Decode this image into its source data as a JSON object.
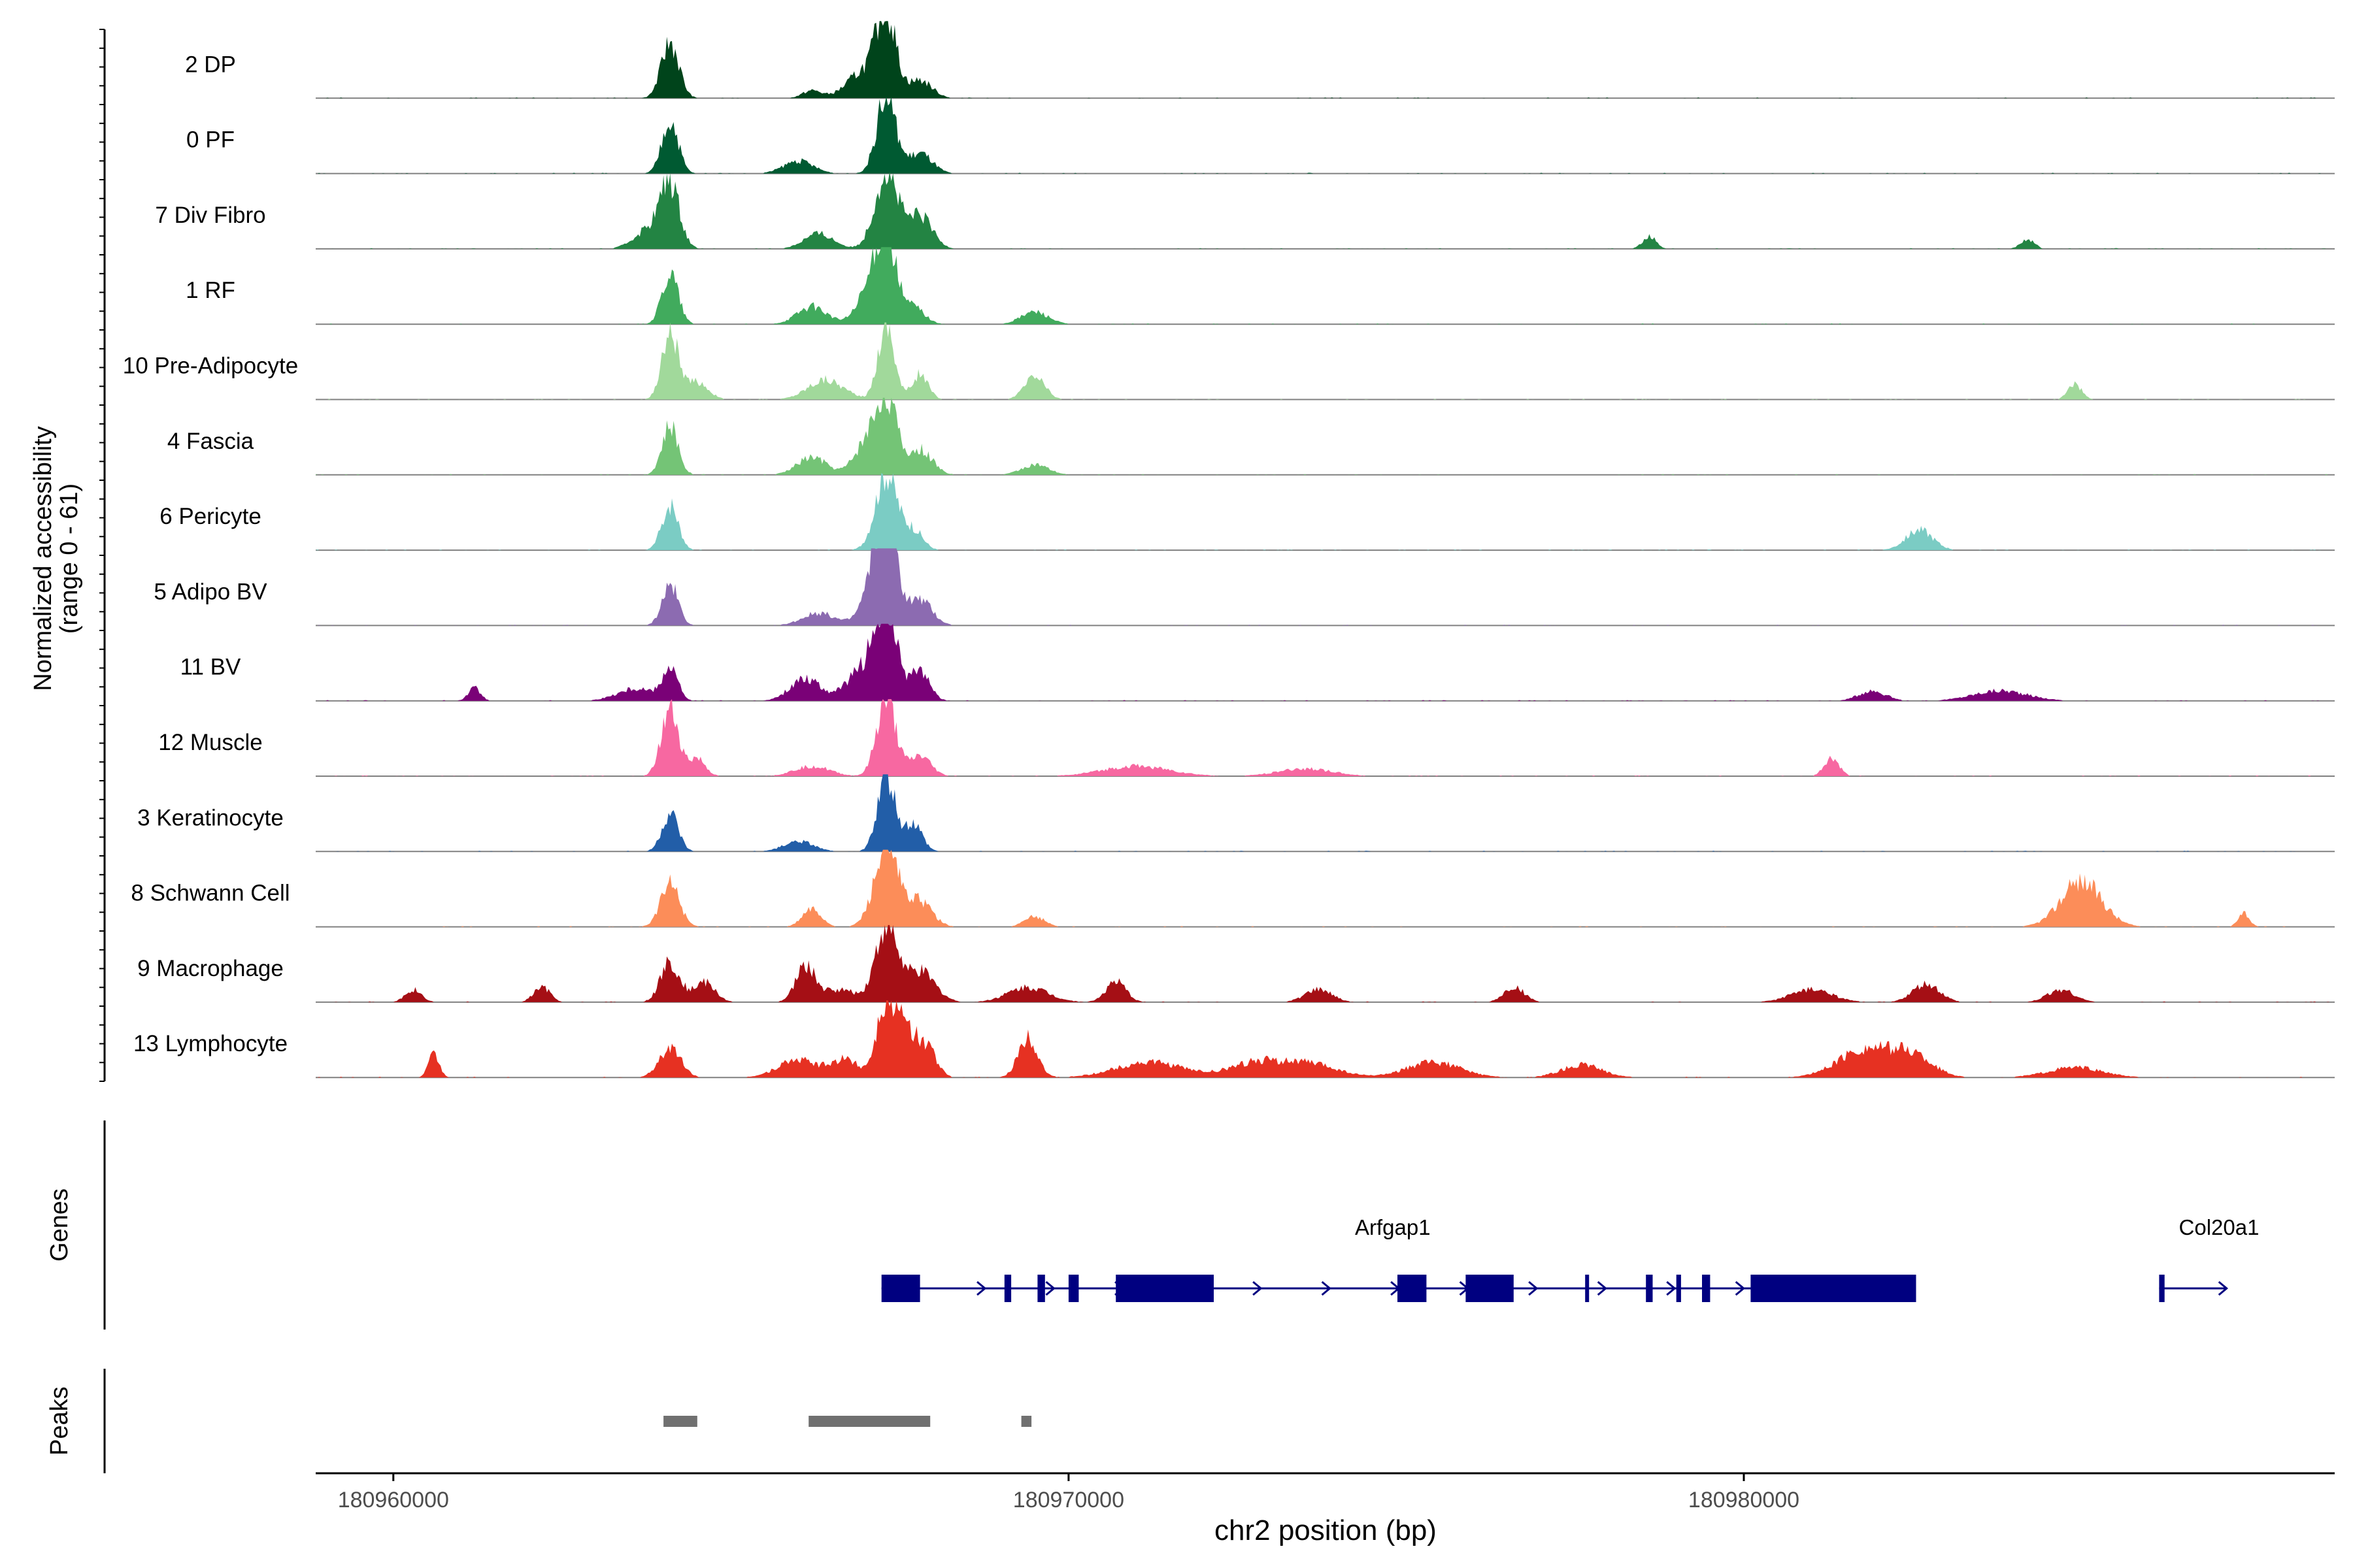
{
  "chart_data": {
    "type": "area",
    "title": "",
    "ylabel_line1": "Normalized accessibility",
    "ylabel_line2": "(range 0 - 61)",
    "xlabel": "chr2 position (bp)",
    "chromosome": "chr2",
    "ylim": [
      0,
      61
    ],
    "xlim": [
      180958850,
      180988750
    ],
    "x_ticks": [
      180960000,
      180970000,
      180980000
    ],
    "x_tick_labels": [
      "180960000",
      "180970000",
      "180980000"
    ],
    "genes_label": "Genes",
    "peaks_label": "Peaks",
    "tracks": [
      {
        "name": "2 DP",
        "color": "#00441b",
        "peaks": [
          [
            180964100,
            44,
            130
          ],
          [
            180966200,
            6,
            140
          ],
          [
            180967000,
            22,
            260
          ],
          [
            180967300,
            61,
            140
          ],
          [
            180967800,
            14,
            180
          ]
        ]
      },
      {
        "name": "0 PF",
        "color": "#005a32",
        "peaks": [
          [
            180964100,
            42,
            120
          ],
          [
            180966000,
            10,
            220
          ],
          [
            180967300,
            61,
            140
          ],
          [
            180967800,
            16,
            180
          ]
        ]
      },
      {
        "name": "7 Div Fibro",
        "color": "#238443",
        "peaks": [
          [
            180963800,
            16,
            220
          ],
          [
            180964100,
            48,
            140
          ],
          [
            180966300,
            12,
            220
          ],
          [
            180967300,
            61,
            170
          ],
          [
            180967800,
            26,
            180
          ],
          [
            180978600,
            10,
            100
          ],
          [
            180984200,
            8,
            100
          ]
        ]
      },
      {
        "name": "1 RF",
        "color": "#41ab5d",
        "peaks": [
          [
            180964100,
            40,
            120
          ],
          [
            180966200,
            14,
            220
          ],
          [
            180967100,
            30,
            200
          ],
          [
            180967300,
            61,
            140
          ],
          [
            180967700,
            14,
            160
          ],
          [
            180969500,
            10,
            200
          ]
        ]
      },
      {
        "name": "10 Pre-Adipocyte",
        "color": "#a1d99b",
        "peaks": [
          [
            180964100,
            52,
            120
          ],
          [
            180964500,
            14,
            160
          ],
          [
            180966400,
            16,
            260
          ],
          [
            180967300,
            61,
            120
          ],
          [
            180967800,
            20,
            120
          ],
          [
            180969500,
            18,
            150
          ],
          [
            180984900,
            12,
            100
          ]
        ]
      },
      {
        "name": "4 Fascia",
        "color": "#74c476",
        "peaks": [
          [
            180964100,
            38,
            120
          ],
          [
            180966200,
            14,
            220
          ],
          [
            180967000,
            24,
            180
          ],
          [
            180967300,
            61,
            150
          ],
          [
            180967800,
            20,
            180
          ],
          [
            180969500,
            8,
            200
          ]
        ]
      },
      {
        "name": "6 Pericyte",
        "color": "#7bccc4",
        "peaks": [
          [
            180964100,
            36,
            120
          ],
          [
            180967300,
            61,
            160
          ],
          [
            180967700,
            16,
            140
          ],
          [
            180982600,
            16,
            200
          ]
        ]
      },
      {
        "name": "5 Adipo BV",
        "color": "#8c6bb1",
        "peaks": [
          [
            180964100,
            32,
            120
          ],
          [
            180966300,
            10,
            240
          ],
          [
            180967200,
            44,
            200
          ],
          [
            180967300,
            61,
            140
          ],
          [
            180967800,
            20,
            180
          ]
        ]
      },
      {
        "name": "11 BV",
        "color": "#7a0177",
        "peaks": [
          [
            180961200,
            10,
            90
          ],
          [
            180963600,
            10,
            280
          ],
          [
            180964100,
            26,
            110
          ],
          [
            180966100,
            18,
            220
          ],
          [
            180967000,
            26,
            260
          ],
          [
            180967300,
            61,
            160
          ],
          [
            180967800,
            24,
            140
          ],
          [
            180981900,
            8,
            200
          ],
          [
            180983800,
            8,
            400
          ]
        ]
      },
      {
        "name": "12 Muscle",
        "color": "#f768a1",
        "peaks": [
          [
            180964100,
            52,
            130
          ],
          [
            180964500,
            14,
            120
          ],
          [
            180966200,
            8,
            260
          ],
          [
            180967300,
            61,
            140
          ],
          [
            180967800,
            16,
            160
          ],
          [
            180971000,
            8,
            500
          ],
          [
            180973500,
            6,
            400
          ],
          [
            180981300,
            14,
            110
          ]
        ]
      },
      {
        "name": "3 Keratinocyte",
        "color": "#225ea8",
        "peaks": [
          [
            180964100,
            30,
            120
          ],
          [
            180966000,
            8,
            220
          ],
          [
            180967300,
            61,
            130
          ],
          [
            180967700,
            22,
            130
          ]
        ]
      },
      {
        "name": "8 Schwann Cell",
        "color": "#fc8d59",
        "peaks": [
          [
            180964100,
            34,
            140
          ],
          [
            180966200,
            14,
            140
          ],
          [
            180967300,
            61,
            180
          ],
          [
            180967800,
            20,
            180
          ],
          [
            180969500,
            8,
            150
          ],
          [
            180985000,
            36,
            300
          ],
          [
            180987400,
            12,
            80
          ]
        ]
      },
      {
        "name": "9 Macrophage",
        "color": "#a50f15",
        "peaks": [
          [
            180960300,
            10,
            120
          ],
          [
            180962200,
            12,
            120
          ],
          [
            180964100,
            32,
            140
          ],
          [
            180964600,
            16,
            160
          ],
          [
            180966100,
            28,
            140
          ],
          [
            180966600,
            10,
            260
          ],
          [
            180967300,
            61,
            160
          ],
          [
            180967800,
            24,
            220
          ],
          [
            180969400,
            12,
            300
          ],
          [
            180970700,
            16,
            150
          ],
          [
            180973700,
            10,
            200
          ],
          [
            180976600,
            12,
            150
          ],
          [
            180981000,
            10,
            300
          ],
          [
            180982700,
            14,
            200
          ],
          [
            180984700,
            10,
            200
          ]
        ]
      },
      {
        "name": "13 Lymphocyte",
        "color": "#e63122",
        "peaks": [
          [
            180960600,
            18,
            80
          ],
          [
            180964100,
            24,
            160
          ],
          [
            180966000,
            14,
            300
          ],
          [
            180966700,
            14,
            200
          ],
          [
            180967300,
            61,
            140
          ],
          [
            180967600,
            34,
            140
          ],
          [
            180967900,
            24,
            140
          ],
          [
            180969400,
            32,
            140
          ],
          [
            180971200,
            12,
            500
          ],
          [
            180972800,
            12,
            400
          ],
          [
            180973600,
            10,
            400
          ],
          [
            180975400,
            12,
            400
          ],
          [
            180977600,
            10,
            300
          ],
          [
            180981800,
            22,
            400
          ],
          [
            180982500,
            16,
            300
          ],
          [
            180984900,
            8,
            400
          ]
        ]
      }
    ],
    "genes": [
      {
        "name": "Arfgap1",
        "strand": "+",
        "start": 180967230,
        "end": 180982550,
        "exons": [
          [
            180967230,
            180967800
          ],
          [
            180969050,
            180969150
          ],
          [
            180969540,
            180969650
          ],
          [
            180970000,
            180970150
          ],
          [
            180970700,
            180972150
          ],
          [
            180974870,
            180975300
          ],
          [
            180975880,
            180976590
          ],
          [
            180977650,
            180977700
          ],
          [
            180978550,
            180978650
          ],
          [
            180979000,
            180979070
          ],
          [
            180979380,
            180979500
          ],
          [
            180980100,
            180982550
          ]
        ]
      },
      {
        "name": "Col20a1",
        "strand": "+",
        "start": 180986150,
        "end": 180987150,
        "exons": [
          [
            180986150,
            180986230
          ]
        ]
      }
    ],
    "peaks": [
      [
        180964000,
        180964500
      ],
      [
        180966150,
        180967950
      ],
      [
        180969300,
        180969450
      ]
    ]
  }
}
